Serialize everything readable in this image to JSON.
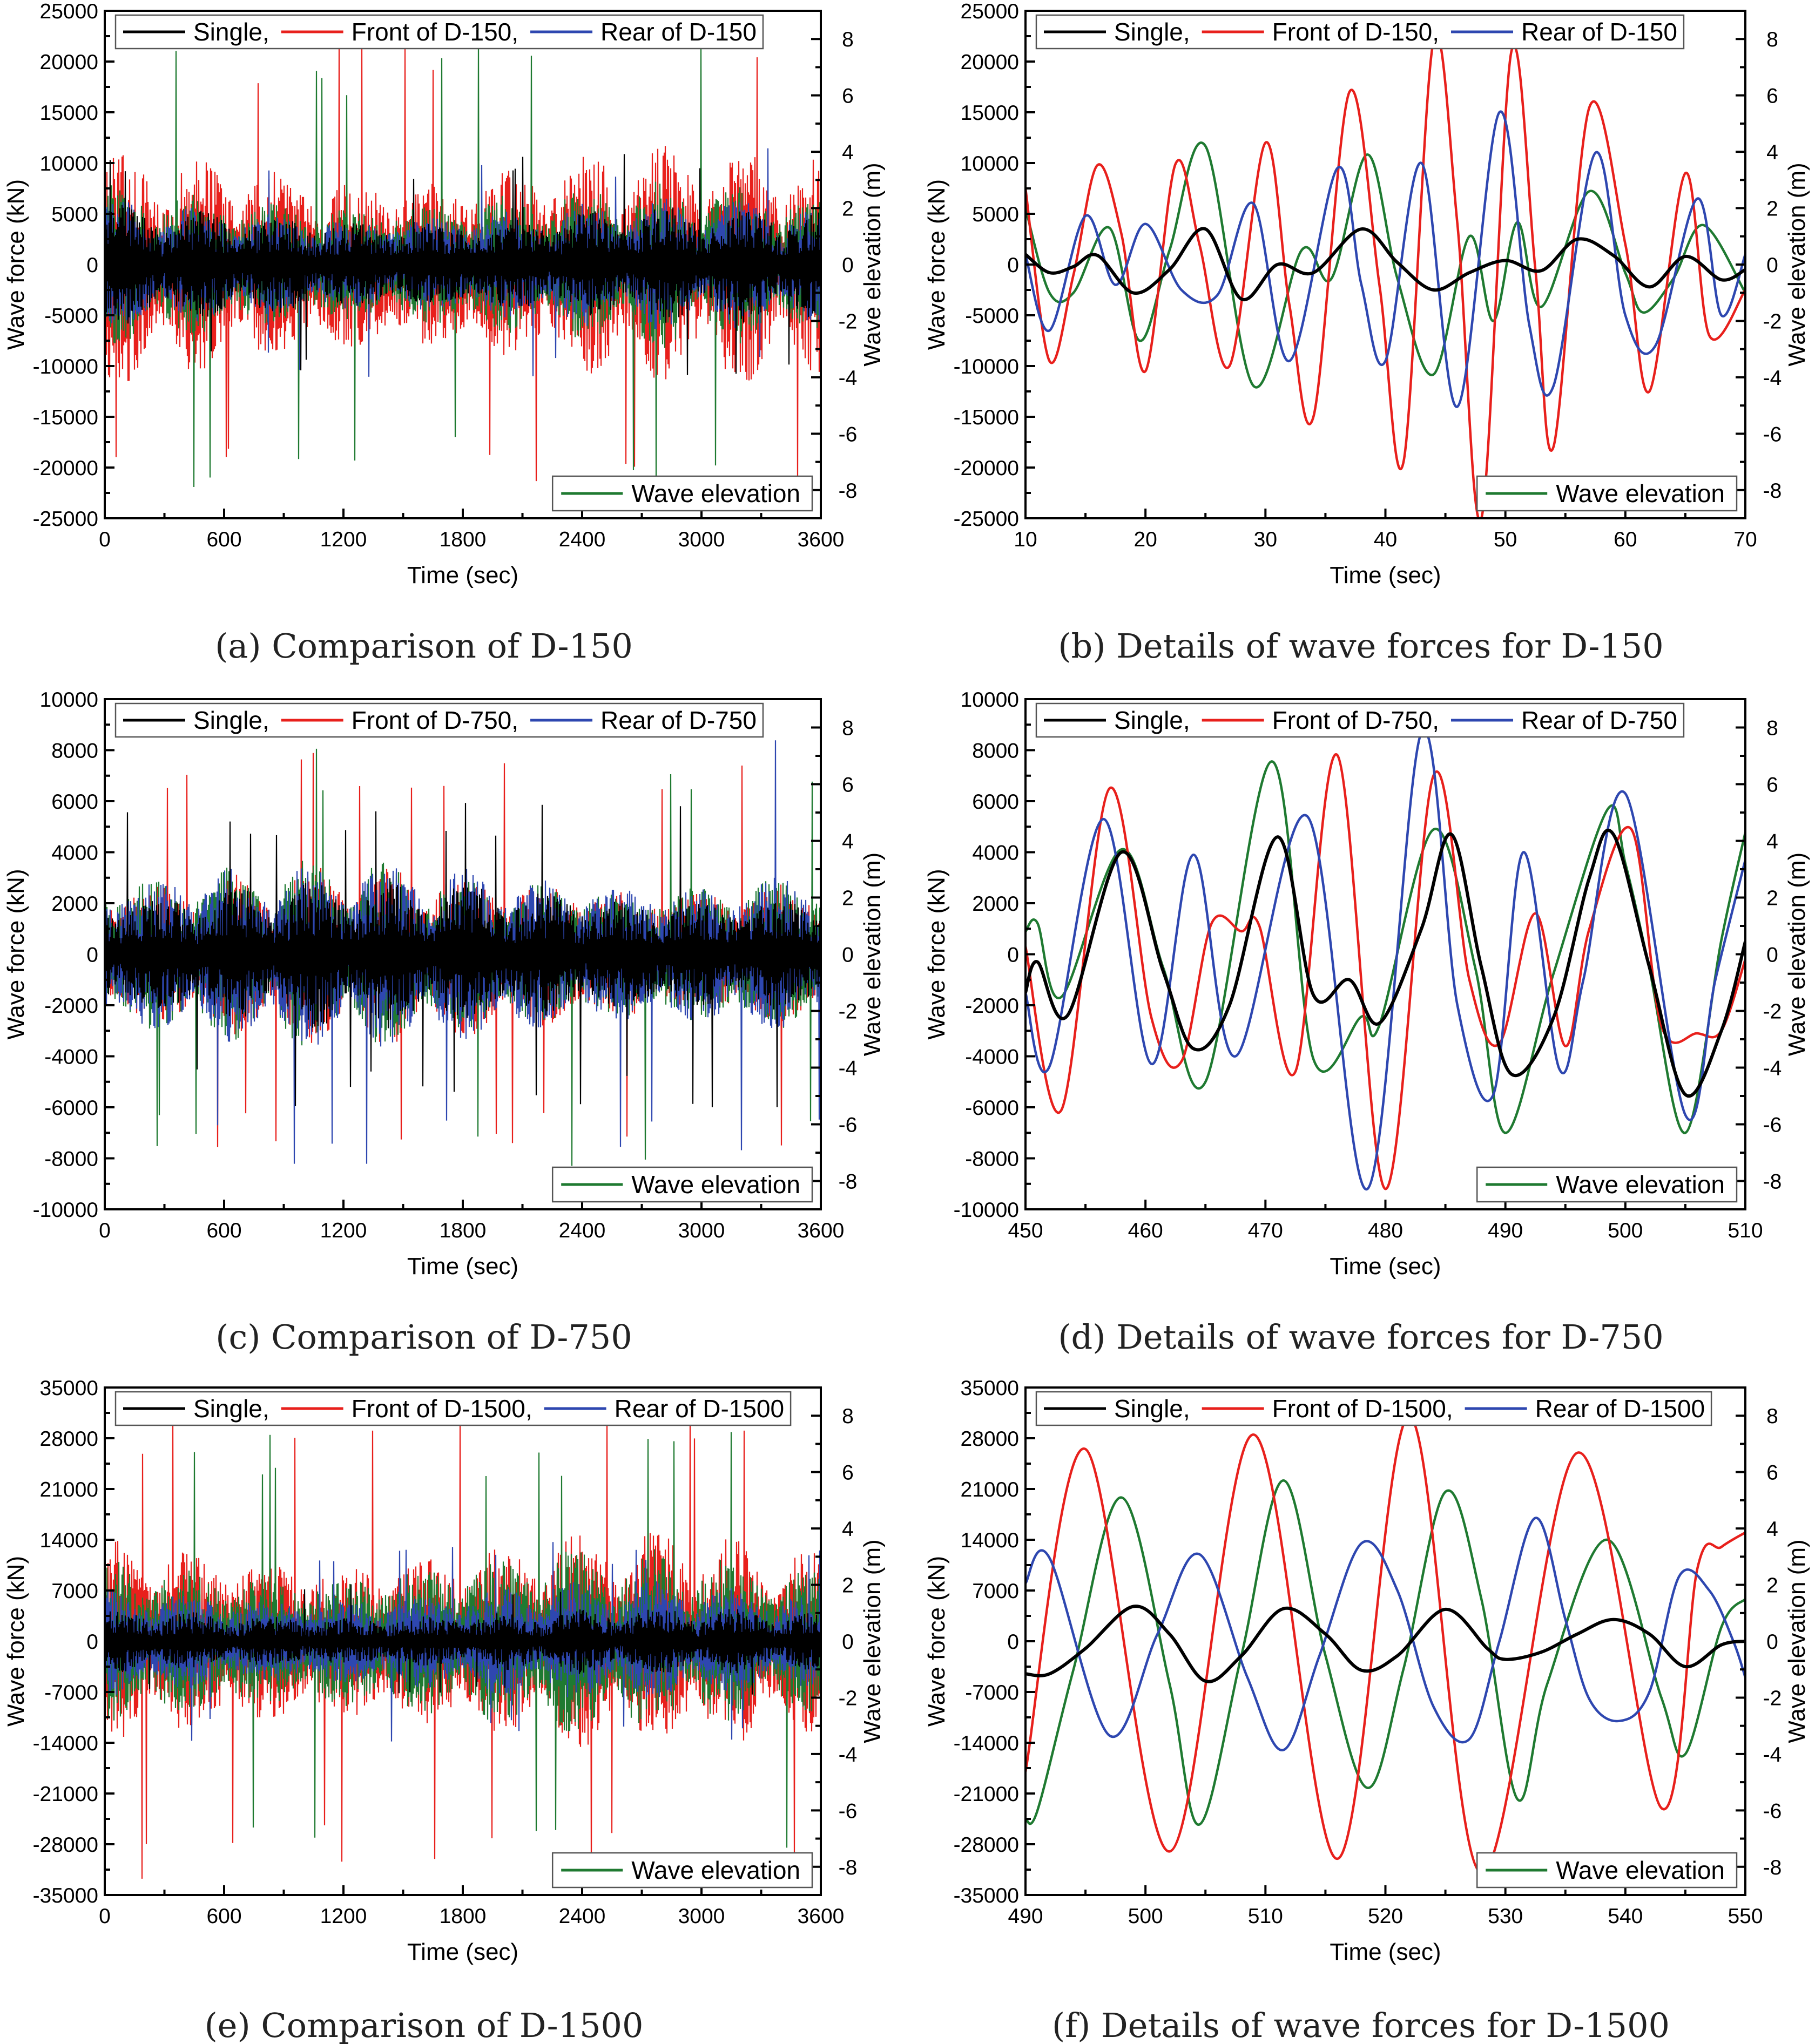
{
  "figure": {
    "colors": {
      "single": "#000000",
      "front": "#e8201c",
      "rear": "#2e47b0",
      "wave": "#1f7a31"
    }
  },
  "chart_data": [
    {
      "type": "line",
      "panel_caption": "(a) Comparison of D-150",
      "xlabel": "Time (sec)",
      "ylabel": "Wave force (kN)",
      "y2label": "Wave elevation (m)",
      "xlim": [
        0,
        3600
      ],
      "ylim": [
        -25000,
        25000
      ],
      "y2lim": [
        -9.0,
        9.0
      ],
      "x_ticks": [
        0,
        600,
        1200,
        1800,
        2400,
        3000,
        3600
      ],
      "y_ticks": [
        -25000,
        -20000,
        -15000,
        -10000,
        -5000,
        0,
        5000,
        10000,
        15000,
        20000,
        25000
      ],
      "y2_ticks": [
        -8,
        -6,
        -4,
        -2,
        0,
        2,
        4,
        6,
        8
      ],
      "legend_top": [
        "Single,",
        "Front of D-150,",
        "Rear of D-150"
      ],
      "legend_bottom": "Wave elevation",
      "legend_placement": [
        "top",
        "bottom-right"
      ],
      "grid": false,
      "signal": "dense",
      "series": [
        {
          "name": "Single,",
          "color": "#000000",
          "envelope": 5000,
          "peak": 11000
        },
        {
          "name": "Front of D-150,",
          "color": "#e8201c",
          "envelope": 10000,
          "peak": 23500
        },
        {
          "name": "Rear of D-150",
          "color": "#2e47b0",
          "envelope": 5500,
          "peak": 11500
        },
        {
          "name": "Wave elevation",
          "color": "#1f7a31",
          "axis": "y2",
          "envelope": 2.5,
          "peak": 8.0
        }
      ]
    },
    {
      "type": "line",
      "panel_caption": "(b) Details of wave forces for D-150",
      "xlabel": "Time (sec)",
      "ylabel": "Wave force (kN)",
      "y2label": "Wave elevation (m)",
      "xlim": [
        10,
        70
      ],
      "ylim": [
        -25000,
        25000
      ],
      "y2lim": [
        -9.0,
        9.0
      ],
      "x_ticks": [
        10,
        20,
        30,
        40,
        50,
        60,
        70
      ],
      "y_ticks": [
        -25000,
        -20000,
        -15000,
        -10000,
        -5000,
        0,
        5000,
        10000,
        15000,
        20000,
        25000
      ],
      "y2_ticks": [
        -8,
        -6,
        -4,
        -2,
        0,
        2,
        4,
        6,
        8
      ],
      "legend_top": [
        "Single,",
        "Front of D-150,",
        "Rear of D-150"
      ],
      "legend_bottom": "Wave elevation",
      "legend_placement": [
        "top",
        "bottom-right"
      ],
      "grid": false,
      "signal": "smooth",
      "series": [
        {
          "name": "Single,",
          "color": "#000000",
          "x": [
            10,
            12,
            14,
            16,
            19,
            22,
            25,
            28,
            31,
            34,
            38,
            41,
            44,
            47,
            50,
            53,
            56,
            59,
            62,
            65,
            68,
            70
          ],
          "values": [
            1000,
            -800,
            -200,
            900,
            -2800,
            -500,
            3500,
            -3400,
            0,
            -800,
            3500,
            200,
            -2500,
            -800,
            400,
            -600,
            2500,
            900,
            -2200,
            800,
            -1500,
            -500
          ]
        },
        {
          "name": "Front of D-150,",
          "color": "#e8201c",
          "x": [
            10,
            12,
            14,
            16,
            18,
            20,
            22.5,
            24.5,
            27,
            30,
            32,
            34,
            37,
            39.5,
            41.5,
            44,
            46,
            48,
            50.5,
            52.5,
            54,
            57,
            60,
            62,
            65,
            67,
            70
          ],
          "values": [
            7500,
            -9500,
            -1000,
            9800,
            3000,
            -10500,
            9900,
            2000,
            -10000,
            12000,
            -4000,
            -15000,
            17000,
            -2000,
            -19500,
            22000,
            4000,
            -25000,
            21000,
            -500,
            -18000,
            15500,
            2000,
            -12500,
            9000,
            -7000,
            -2500
          ]
        },
        {
          "name": "Rear of D-150",
          "color": "#2e47b0",
          "x": [
            10,
            12,
            15,
            17.5,
            20,
            23,
            26,
            29,
            32,
            36,
            38,
            40,
            43,
            46,
            49.5,
            52,
            54,
            57.5,
            60,
            62.5,
            66,
            68,
            70
          ],
          "values": [
            1000,
            -6500,
            4800,
            -2000,
            4000,
            -2500,
            -3000,
            6000,
            -9500,
            9500,
            -2000,
            -9500,
            10000,
            -14000,
            15000,
            -6000,
            -12000,
            11000,
            -5000,
            -8000,
            6500,
            -5000,
            1000
          ]
        },
        {
          "name": "Wave elevation",
          "color": "#1f7a31",
          "axis": "y2",
          "x": [
            10,
            12,
            14,
            17,
            19.5,
            22,
            25,
            29,
            33,
            35.5,
            38.5,
            41,
            44,
            47,
            49,
            51,
            53,
            57,
            60,
            61.5,
            64,
            66.5,
            70
          ],
          "values": [
            2.0,
            -1.0,
            -1.0,
            1.3,
            -2.7,
            0.5,
            4.2,
            -4.3,
            0.5,
            -0.5,
            3.9,
            -0.5,
            -3.9,
            1.0,
            -2.0,
            1.5,
            -1.5,
            2.6,
            -0.3,
            -1.7,
            -0.5,
            1.4,
            -1.0
          ]
        }
      ]
    },
    {
      "type": "line",
      "panel_caption": "(c) Comparison of D-750",
      "xlabel": "Time (sec)",
      "ylabel": "Wave force (kN)",
      "y2label": "Wave elevation (m)",
      "xlim": [
        0,
        3600
      ],
      "ylim": [
        -10000,
        10000
      ],
      "y2lim": [
        -9.0,
        9.0
      ],
      "x_ticks": [
        0,
        600,
        1200,
        1800,
        2400,
        3000,
        3600
      ],
      "y_ticks": [
        -10000,
        -8000,
        -6000,
        -4000,
        -2000,
        0,
        2000,
        4000,
        6000,
        8000,
        10000
      ],
      "y2_ticks": [
        -8,
        -6,
        -4,
        -2,
        0,
        2,
        4,
        6,
        8
      ],
      "legend_top": [
        "Single,",
        "Front of D-750,",
        "Rear of D-750"
      ],
      "legend_bottom": "Wave elevation",
      "legend_placement": [
        "top",
        "bottom-right"
      ],
      "grid": false,
      "signal": "dense",
      "series": [
        {
          "name": "Single,",
          "color": "#000000",
          "envelope": 2500,
          "peak": 6000
        },
        {
          "name": "Front of D-750,",
          "color": "#e8201c",
          "envelope": 3000,
          "peak": 8000
        },
        {
          "name": "Rear of D-750",
          "color": "#2e47b0",
          "envelope": 3200,
          "peak": 8500
        },
        {
          "name": "Wave elevation",
          "color": "#1f7a31",
          "axis": "y2",
          "envelope": 2.8,
          "peak": 7.5
        }
      ]
    },
    {
      "type": "line",
      "panel_caption": "(d) Details of wave forces for D-750",
      "xlabel": "Time (sec)",
      "ylabel": "Wave force (kN)",
      "y2label": "Wave elevation (m)",
      "xlim": [
        450,
        510
      ],
      "ylim": [
        -10000,
        10000
      ],
      "y2lim": [
        -9.0,
        9.0
      ],
      "x_ticks": [
        450,
        460,
        470,
        480,
        490,
        500,
        510
      ],
      "y_ticks": [
        -10000,
        -8000,
        -6000,
        -4000,
        -2000,
        0,
        2000,
        4000,
        6000,
        8000,
        10000
      ],
      "y2_ticks": [
        -8,
        -6,
        -4,
        -2,
        0,
        2,
        4,
        6,
        8
      ],
      "legend_top": [
        "Single,",
        "Front of D-750,",
        "Rear of D-750"
      ],
      "legend_bottom": "Wave elevation",
      "legend_placement": [
        "top",
        "bottom-right"
      ],
      "grid": false,
      "signal": "smooth",
      "series": [
        {
          "name": "Single,",
          "color": "#000000",
          "x": [
            450,
            451,
            453.5,
            458,
            461.5,
            464,
            467,
            471,
            474,
            477,
            479.5,
            483,
            485.5,
            488,
            490.5,
            494,
            497,
            499,
            502,
            505,
            508,
            510
          ],
          "values": [
            -1500,
            -300,
            -2400,
            4000,
            -700,
            -3700,
            -2000,
            4600,
            -1600,
            -1000,
            -2700,
            1000,
            4700,
            -500,
            -4700,
            -2500,
            3000,
            4700,
            -500,
            -5500,
            -3000,
            500
          ]
        },
        {
          "name": "Front of D-750,",
          "color": "#e8201c",
          "x": [
            450,
            453,
            457,
            460.5,
            463,
            465.5,
            468,
            469.5,
            472.5,
            476,
            480,
            484,
            487,
            489.5,
            492.5,
            495,
            497,
            500.5,
            503,
            506,
            508,
            510
          ],
          "values": [
            300,
            -6100,
            6500,
            -2500,
            -4200,
            1200,
            900,
            1100,
            -4600,
            7800,
            -9200,
            7000,
            -1000,
            -3500,
            1600,
            -3600,
            1000,
            4900,
            -2800,
            -3100,
            -3000,
            -200
          ]
        },
        {
          "name": "Rear of D-750",
          "color": "#2e47b0",
          "x": [
            450,
            452,
            456.5,
            460.5,
            464,
            467.5,
            473.5,
            478.5,
            483,
            486,
            489,
            491.5,
            494.5,
            496.5,
            500,
            505,
            507.5,
            510
          ],
          "values": [
            -1500,
            -4400,
            5300,
            -4300,
            3900,
            -4000,
            5400,
            -9200,
            8700,
            -2000,
            -5500,
            4000,
            -4500,
            -1000,
            6300,
            -6300,
            -1000,
            3700
          ]
        },
        {
          "name": "Wave elevation",
          "color": "#1f7a31",
          "axis": "y2",
          "x": [
            450,
            451,
            453,
            458,
            461.5,
            465,
            470.5,
            474,
            478,
            479.5,
            484,
            487.5,
            490,
            494,
            498.5,
            500,
            502,
            505,
            508,
            510
          ],
          "values": [
            0.8,
            1.1,
            -1.5,
            3.7,
            -0.5,
            -4.5,
            6.8,
            -3.7,
            -2.2,
            -2.5,
            4.4,
            -0.5,
            -6.3,
            -0.7,
            5.1,
            3.2,
            -0.5,
            -6.3,
            0.5,
            4.3
          ]
        }
      ]
    },
    {
      "type": "line",
      "panel_caption": "(e) Comparison of D-1500",
      "xlabel": "Time (sec)",
      "ylabel": "Wave force (kN)",
      "y2label": "Wave elevation (m)",
      "xlim": [
        0,
        3600
      ],
      "ylim": [
        -35000,
        35000
      ],
      "y2lim": [
        -9.0,
        9.0
      ],
      "x_ticks": [
        0,
        600,
        1200,
        1800,
        2400,
        3000,
        3600
      ],
      "y_ticks": [
        -35000,
        -28000,
        -21000,
        -14000,
        -7000,
        0,
        7000,
        14000,
        21000,
        28000,
        35000
      ],
      "y2_ticks": [
        -8,
        -6,
        -4,
        -2,
        0,
        2,
        4,
        6,
        8
      ],
      "legend_top": [
        "Single,",
        "Front of D-1500,",
        "Rear of D-1500"
      ],
      "legend_bottom": "Wave elevation",
      "legend_placement": [
        "top",
        "bottom-right"
      ],
      "grid": false,
      "signal": "dense",
      "series": [
        {
          "name": "Single,",
          "color": "#000000",
          "envelope": 4000,
          "peak": 8000
        },
        {
          "name": "Front of D-1500,",
          "color": "#e8201c",
          "envelope": 13000,
          "peak": 33000
        },
        {
          "name": "Rear of D-1500",
          "color": "#2e47b0",
          "envelope": 7000,
          "peak": 14000
        },
        {
          "name": "Wave elevation",
          "color": "#1f7a31",
          "axis": "y2",
          "envelope": 2.8,
          "peak": 7.8
        }
      ]
    },
    {
      "type": "line",
      "panel_caption": "(f) Details of wave forces for D-1500",
      "xlabel": "Time (sec)",
      "ylabel": "Wave force (kN)",
      "y2label": "Wave elevation (m)",
      "xlim": [
        490,
        550
      ],
      "ylim": [
        -35000,
        35000
      ],
      "y2lim": [
        -9.0,
        9.0
      ],
      "x_ticks": [
        490,
        500,
        510,
        520,
        530,
        540,
        550
      ],
      "y_ticks": [
        -35000,
        -28000,
        -21000,
        -14000,
        -7000,
        0,
        7000,
        14000,
        21000,
        28000,
        35000
      ],
      "y2_ticks": [
        -8,
        -6,
        -4,
        -2,
        0,
        2,
        4,
        6,
        8
      ],
      "legend_top": [
        "Single,",
        "Front of D-1500,",
        "Rear of D-1500"
      ],
      "legend_bottom": "Wave elevation",
      "legend_placement": [
        "top",
        "bottom-right"
      ],
      "grid": false,
      "signal": "smooth",
      "series": [
        {
          "name": "Single,",
          "color": "#000000",
          "x": [
            490,
            492,
            495,
            499,
            502,
            505,
            508,
            511.5,
            515,
            518,
            521,
            525,
            528.5,
            530,
            533,
            536,
            539,
            542,
            545,
            548,
            550
          ],
          "values": [
            -4500,
            -4500,
            -1000,
            4800,
            1000,
            -5500,
            -2000,
            4500,
            1000,
            -4000,
            -2000,
            4400,
            -1000,
            -2500,
            -1500,
            1000,
            3000,
            1000,
            -3500,
            -500,
            0
          ]
        },
        {
          "name": "Front of D-1500,",
          "color": "#e8201c",
          "x": [
            490,
            495,
            502,
            509,
            516,
            522,
            528,
            536,
            543,
            546,
            548,
            550
          ],
          "values": [
            -18000,
            26500,
            -29000,
            28500,
            -30000,
            31000,
            -32000,
            26000,
            -23000,
            10000,
            13000,
            15000
          ]
        },
        {
          "name": "Rear of D-1500",
          "color": "#2e47b0",
          "x": [
            490,
            492,
            497,
            501,
            504.5,
            508.5,
            511.5,
            514.5,
            518,
            521,
            524,
            527,
            529.5,
            532.5,
            535,
            537,
            539.5,
            542,
            544.5,
            547,
            549,
            550
          ],
          "values": [
            8000,
            11500,
            -13000,
            1000,
            12000,
            -5000,
            -15000,
            -2000,
            13500,
            7000,
            -9000,
            -13500,
            0,
            17000,
            3000,
            -8000,
            -11000,
            -7000,
            9000,
            7000,
            0,
            -5000
          ]
        },
        {
          "name": "Wave elevation",
          "color": "#1f7a31",
          "axis": "y2",
          "x": [
            490,
            491,
            494,
            498,
            502,
            504.5,
            508,
            511.5,
            515,
            518.5,
            521.5,
            525,
            528,
            531,
            533.5,
            538.5,
            543,
            545,
            548,
            550
          ],
          "values": [
            -6.3,
            -6.0,
            -1.0,
            5.1,
            -1.5,
            -6.5,
            -0.5,
            5.7,
            -0.5,
            -5.2,
            -1.0,
            5.3,
            1.5,
            -5.6,
            -1.5,
            3.6,
            -2.0,
            -4.0,
            0.5,
            1.5
          ]
        }
      ]
    }
  ]
}
